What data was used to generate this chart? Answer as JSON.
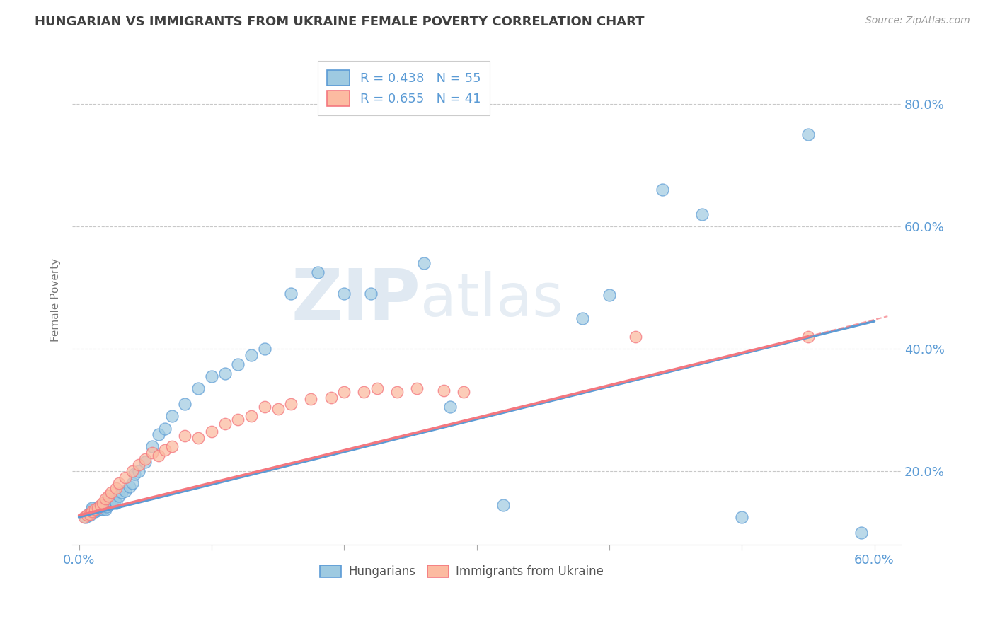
{
  "title": "HUNGARIAN VS IMMIGRANTS FROM UKRAINE FEMALE POVERTY CORRELATION CHART",
  "source": "Source: ZipAtlas.com",
  "ylabel": "Female Poverty",
  "xlim": [
    -0.005,
    0.62
  ],
  "ylim": [
    0.08,
    0.88
  ],
  "xticks": [
    0.0,
    0.1,
    0.2,
    0.3,
    0.4,
    0.5,
    0.6
  ],
  "xtick_labels": [
    "0.0%",
    "",
    "",
    "",
    "",
    "",
    "60.0%"
  ],
  "ytick_positions_right": [
    0.2,
    0.4,
    0.6,
    0.8
  ],
  "ytick_labels_right": [
    "20.0%",
    "40.0%",
    "60.0%",
    "80.0%"
  ],
  "legend_r1": "R = 0.438",
  "legend_n1": "N = 55",
  "legend_r2": "R = 0.655",
  "legend_n2": "N = 41",
  "blue_color": "#5b9bd5",
  "pink_color": "#f4777f",
  "blue_fill": "#9ecae1",
  "pink_fill": "#fcbba1",
  "watermark_zip": "ZIP",
  "watermark_atlas": "atlas",
  "background_color": "#ffffff",
  "grid_color": "#c8c8c8",
  "title_color": "#404040",
  "axis_label_color": "#5b9bd5",
  "tick_label_color": "#5b9bd5",
  "blue_scatter_x": [
    0.005,
    0.007,
    0.008,
    0.009,
    0.01,
    0.01,
    0.01,
    0.012,
    0.013,
    0.015,
    0.015,
    0.016,
    0.017,
    0.018,
    0.018,
    0.02,
    0.021,
    0.022,
    0.023,
    0.025,
    0.027,
    0.028,
    0.03,
    0.032,
    0.035,
    0.038,
    0.04,
    0.042,
    0.045,
    0.05,
    0.055,
    0.06,
    0.065,
    0.07,
    0.08,
    0.09,
    0.1,
    0.11,
    0.12,
    0.13,
    0.14,
    0.16,
    0.18,
    0.2,
    0.22,
    0.26,
    0.28,
    0.32,
    0.38,
    0.4,
    0.44,
    0.47,
    0.5,
    0.55,
    0.59
  ],
  "blue_scatter_y": [
    0.125,
    0.13,
    0.128,
    0.132,
    0.135,
    0.138,
    0.14,
    0.134,
    0.136,
    0.14,
    0.142,
    0.138,
    0.142,
    0.138,
    0.142,
    0.138,
    0.142,
    0.155,
    0.148,
    0.15,
    0.152,
    0.148,
    0.16,
    0.165,
    0.168,
    0.175,
    0.18,
    0.195,
    0.2,
    0.215,
    0.24,
    0.26,
    0.27,
    0.29,
    0.31,
    0.335,
    0.355,
    0.36,
    0.375,
    0.39,
    0.4,
    0.49,
    0.525,
    0.49,
    0.49,
    0.54,
    0.305,
    0.145,
    0.45,
    0.488,
    0.66,
    0.62,
    0.125,
    0.75,
    0.1
  ],
  "pink_scatter_x": [
    0.004,
    0.006,
    0.008,
    0.01,
    0.012,
    0.014,
    0.016,
    0.018,
    0.02,
    0.022,
    0.024,
    0.028,
    0.03,
    0.035,
    0.04,
    0.045,
    0.05,
    0.055,
    0.06,
    0.065,
    0.07,
    0.08,
    0.09,
    0.1,
    0.11,
    0.12,
    0.13,
    0.14,
    0.15,
    0.16,
    0.175,
    0.19,
    0.2,
    0.215,
    0.225,
    0.24,
    0.255,
    0.275,
    0.29,
    0.42,
    0.55
  ],
  "pink_scatter_y": [
    0.125,
    0.128,
    0.13,
    0.134,
    0.138,
    0.14,
    0.145,
    0.148,
    0.155,
    0.16,
    0.165,
    0.172,
    0.18,
    0.19,
    0.2,
    0.21,
    0.22,
    0.23,
    0.225,
    0.235,
    0.24,
    0.258,
    0.255,
    0.265,
    0.278,
    0.285,
    0.29,
    0.305,
    0.302,
    0.31,
    0.318,
    0.32,
    0.33,
    0.33,
    0.335,
    0.33,
    0.335,
    0.332,
    0.33,
    0.42,
    0.42
  ],
  "blue_line_x": [
    0.0,
    0.6
  ],
  "blue_line_y": [
    0.125,
    0.445
  ],
  "pink_line_x": [
    0.0,
    0.55
  ],
  "pink_line_y": [
    0.128,
    0.42
  ]
}
